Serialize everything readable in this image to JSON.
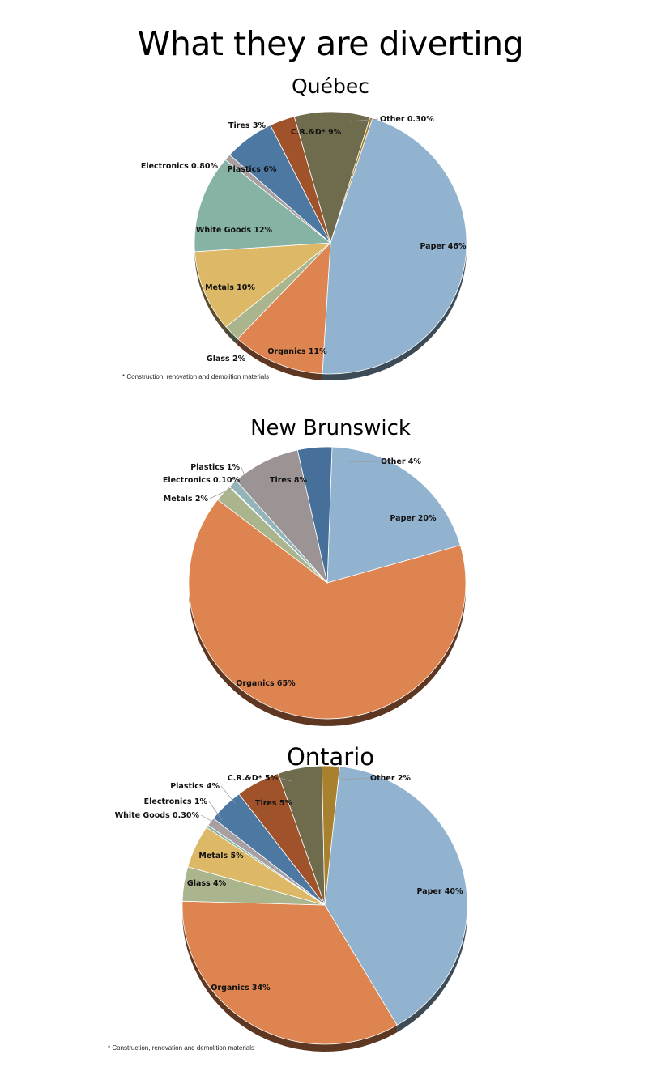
{
  "title": "What they are diverting",
  "colors": {
    "paper": "#92b3d0",
    "organics": "#dd8450",
    "glass": "#aab48d",
    "metals": "#ddb866",
    "white_goods": "#86b3a4",
    "electronics": "#a79fa2",
    "plastics": "#4d78a2",
    "tires": "#a0532b",
    "crd": "#6e6c4d",
    "other": "#a8812f",
    "tires_nb": "#9c9395",
    "electronics_nb": "#7fb1aa",
    "plastics_nb": "#93b5ba",
    "other_nb": "#46709a"
  },
  "chart_data": [
    {
      "type": "pie",
      "title": "Québec",
      "footnote": "* Construction, renovation and demolition materials",
      "slices": [
        {
          "name": "Paper",
          "value": 46,
          "label": "Paper 46%",
          "color": "paper"
        },
        {
          "name": "Organics",
          "value": 11,
          "label": "Organics 11%",
          "color": "organics"
        },
        {
          "name": "Glass",
          "value": 2,
          "label": "Glass 2%",
          "color": "glass"
        },
        {
          "name": "Metals",
          "value": 10,
          "label": "Metals 10%",
          "color": "metals"
        },
        {
          "name": "White Goods",
          "value": 12,
          "label": "White Goods 12%",
          "color": "white_goods"
        },
        {
          "name": "Electronics",
          "value": 0.8,
          "label": "Electronics 0.80%",
          "color": "electronics"
        },
        {
          "name": "Plastics",
          "value": 6,
          "label": "Plastics 6%",
          "color": "plastics"
        },
        {
          "name": "Tires",
          "value": 3,
          "label": "Tires 3%",
          "color": "tires"
        },
        {
          "name": "C.R.&D*",
          "value": 9,
          "label": "C.R.&D* 9%",
          "color": "crd"
        },
        {
          "name": "Other",
          "value": 0.3,
          "label": "Other 0.30%",
          "color": "other"
        }
      ]
    },
    {
      "type": "pie",
      "title": "New Brunswick",
      "slices": [
        {
          "name": "Paper",
          "value": 20,
          "label": "Paper 20%",
          "color": "paper"
        },
        {
          "name": "Organics",
          "value": 65,
          "label": "Organics 65%",
          "color": "organics"
        },
        {
          "name": "Metals",
          "value": 2,
          "label": "Metals 2%",
          "color": "glass"
        },
        {
          "name": "Electronics",
          "value": 0.1,
          "label": "Electronics 0.10%",
          "color": "electronics_nb"
        },
        {
          "name": "Plastics",
          "value": 1,
          "label": "Plastics 1%",
          "color": "plastics_nb"
        },
        {
          "name": "Tires",
          "value": 8,
          "label": "Tires 8%",
          "color": "tires_nb"
        },
        {
          "name": "Other",
          "value": 4,
          "label": "Other 4%",
          "color": "other_nb"
        }
      ]
    },
    {
      "type": "pie",
      "title": "Ontario",
      "footnote": "* Construction, renovation and demolition materials",
      "slices": [
        {
          "name": "Paper",
          "value": 40,
          "label": "Paper 40%",
          "color": "paper"
        },
        {
          "name": "Organics",
          "value": 34,
          "label": "Organics 34%",
          "color": "organics"
        },
        {
          "name": "Glass",
          "value": 4,
          "label": "Glass 4%",
          "color": "glass"
        },
        {
          "name": "Metals",
          "value": 5,
          "label": "Metals 5%",
          "color": "metals"
        },
        {
          "name": "White Goods",
          "value": 0.3,
          "label": "White Goods 0.30%",
          "color": "white_goods"
        },
        {
          "name": "Electronics",
          "value": 1,
          "label": "Electronics 1%",
          "color": "electronics"
        },
        {
          "name": "Plastics",
          "value": 4,
          "label": "Plastics 4%",
          "color": "plastics"
        },
        {
          "name": "Tires",
          "value": 5,
          "label": "Tires 5%",
          "color": "tires"
        },
        {
          "name": "C.R.&D*",
          "value": 5,
          "label": "C.R.&D* 5%",
          "color": "crd"
        },
        {
          "name": "Other",
          "value": 2,
          "label": "Other 2%",
          "color": "other"
        }
      ]
    }
  ]
}
